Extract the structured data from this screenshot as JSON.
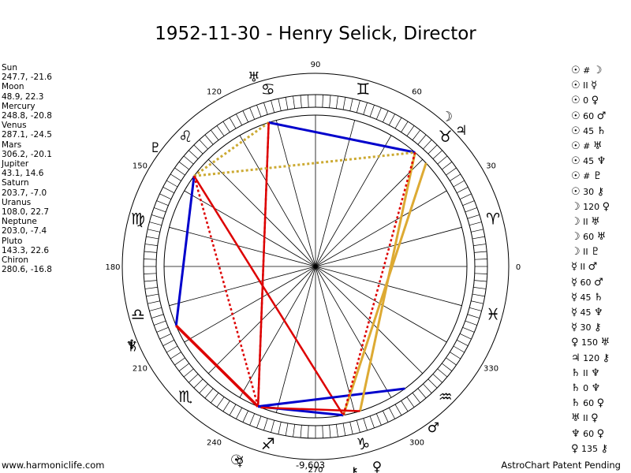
{
  "title": "1952-11-30 - Henry Selick, Director",
  "planets": [
    {
      "name": "Sun",
      "pos": "247.7, -21.6",
      "lon": 247.7,
      "glyph": "☉"
    },
    {
      "name": "Moon",
      "pos": "48.9, 22.3",
      "lon": 48.9,
      "glyph": "☽"
    },
    {
      "name": "Mercury",
      "pos": "248.8, -20.8",
      "lon": 248.8,
      "glyph": "☿"
    },
    {
      "name": "Venus",
      "pos": "287.1, -24.5",
      "lon": 287.1,
      "glyph": "♀"
    },
    {
      "name": "Mars",
      "pos": "306.2, -20.1",
      "lon": 306.2,
      "glyph": "♂"
    },
    {
      "name": "Jupiter",
      "pos": "43.1, 14.6",
      "lon": 43.1,
      "glyph": "♃"
    },
    {
      "name": "Saturn",
      "pos": "203.7, -7.0",
      "lon": 203.7,
      "glyph": "♄"
    },
    {
      "name": "Uranus",
      "pos": "108.0, 22.7",
      "lon": 108.0,
      "glyph": "♅"
    },
    {
      "name": "Neptune",
      "pos": "203.0, -7.4",
      "lon": 203.0,
      "glyph": "♆"
    },
    {
      "name": "Pluto",
      "pos": "143.3, 22.6",
      "lon": 143.3,
      "glyph": "♇"
    },
    {
      "name": "Chiron",
      "pos": "280.6, -16.8",
      "lon": 280.6,
      "glyph": "⚷"
    }
  ],
  "aspects": [
    {
      "p1": "☉",
      "asp": "#",
      "p2": "☽"
    },
    {
      "p1": "☉",
      "asp": "II",
      "p2": "☿"
    },
    {
      "p1": "☉",
      "asp": "0",
      "p2": "♀"
    },
    {
      "p1": "☉",
      "asp": "60",
      "p2": "♂"
    },
    {
      "p1": "☉",
      "asp": "45",
      "p2": "♄"
    },
    {
      "p1": "☉",
      "asp": "#",
      "p2": "♅"
    },
    {
      "p1": "☉",
      "asp": "45",
      "p2": "♆"
    },
    {
      "p1": "☉",
      "asp": "#",
      "p2": "♇"
    },
    {
      "p1": "☉",
      "asp": "30",
      "p2": "⚷"
    },
    {
      "p1": "☽",
      "asp": "120",
      "p2": "♀"
    },
    {
      "p1": "☽",
      "asp": "II",
      "p2": "♅"
    },
    {
      "p1": "☽",
      "asp": "60",
      "p2": "♅"
    },
    {
      "p1": "☽",
      "asp": "II",
      "p2": "♇"
    },
    {
      "p1": "☿",
      "asp": "II",
      "p2": "♂"
    },
    {
      "p1": "☿",
      "asp": "60",
      "p2": "♂"
    },
    {
      "p1": "☿",
      "asp": "45",
      "p2": "♄"
    },
    {
      "p1": "☿",
      "asp": "45",
      "p2": "♆"
    },
    {
      "p1": "☿",
      "asp": "30",
      "p2": "⚷"
    },
    {
      "p1": "♀",
      "asp": "150",
      "p2": "♅"
    },
    {
      "p1": "♃",
      "asp": "120",
      "p2": "⚷"
    },
    {
      "p1": "♄",
      "asp": "II",
      "p2": "♆"
    },
    {
      "p1": "♄",
      "asp": "0",
      "p2": "♆"
    },
    {
      "p1": "♄",
      "asp": "60",
      "p2": "♀"
    },
    {
      "p1": "♅",
      "asp": "II",
      "p2": "♀"
    },
    {
      "p1": "♆",
      "asp": "60",
      "p2": "♀"
    },
    {
      "p1": "♀",
      "asp": "135",
      "p2": "⚷"
    }
  ],
  "zodiac": [
    {
      "sign": "Aries",
      "glyph": "♈",
      "lon": 15
    },
    {
      "sign": "Taurus",
      "glyph": "♉",
      "lon": 45
    },
    {
      "sign": "Gemini",
      "glyph": "♊",
      "lon": 75
    },
    {
      "sign": "Cancer",
      "glyph": "♋",
      "lon": 105
    },
    {
      "sign": "Leo",
      "glyph": "♌",
      "lon": 135
    },
    {
      "sign": "Virgo",
      "glyph": "♍",
      "lon": 165
    },
    {
      "sign": "Libra",
      "glyph": "♎",
      "lon": 195
    },
    {
      "sign": "Scorpio",
      "glyph": "♏",
      "lon": 225
    },
    {
      "sign": "Sagittarius",
      "glyph": "♐",
      "lon": 255
    },
    {
      "sign": "Capricorn",
      "glyph": "♑",
      "lon": 285
    },
    {
      "sign": "Aquarius",
      "glyph": "♒",
      "lon": 315
    },
    {
      "sign": "Pisces",
      "glyph": "♓",
      "lon": 345
    }
  ],
  "degree_labels": [
    "0",
    "30",
    "60",
    "90",
    "120",
    "150",
    "180",
    "210",
    "240",
    "270",
    "300",
    "330"
  ],
  "aspect_lines": [
    {
      "from": "Uranus",
      "to": "Moon",
      "color": "#0000cc",
      "width": 3,
      "dash": false
    },
    {
      "from": "Uranus",
      "to": "Sun",
      "color": "#dd0000",
      "width": 2.5,
      "dash": false
    },
    {
      "from": "Uranus",
      "to": "Pluto",
      "color": "#ccaa33",
      "width": 3,
      "dash": true
    },
    {
      "from": "Pluto",
      "to": "Moon",
      "color": "#ccaa33",
      "width": 3,
      "dash": true
    },
    {
      "from": "Pluto",
      "to": "Neptune",
      "color": "#0000cc",
      "width": 3,
      "dash": false
    },
    {
      "from": "Pluto",
      "to": "Chiron",
      "color": "#dd0000",
      "width": 2.5,
      "dash": false
    },
    {
      "from": "Pluto",
      "to": "Sun",
      "color": "#dd0000",
      "width": 2.5,
      "dash": true
    },
    {
      "from": "Neptune",
      "to": "Sun",
      "color": "#dd0000",
      "width": 3.5,
      "dash": false
    },
    {
      "from": "Sun",
      "to": "Mars",
      "color": "#0000cc",
      "width": 3,
      "dash": false
    },
    {
      "from": "Sun",
      "to": "Chiron",
      "color": "#0000cc",
      "width": 3,
      "dash": false
    },
    {
      "from": "Moon",
      "to": "Venus",
      "color": "#ddaa33",
      "width": 3,
      "dash": false
    },
    {
      "from": "Jupiter",
      "to": "Chiron",
      "color": "#ddaa33",
      "width": 3,
      "dash": false
    },
    {
      "from": "Moon",
      "to": "Chiron",
      "color": "#dd0000",
      "width": 2.5,
      "dash": true
    },
    {
      "from": "Uranus",
      "to": "Sun",
      "color": "#dd0000",
      "width": 2.5,
      "dash": true
    },
    {
      "from": "Mercury",
      "to": "Venus",
      "color": "#dd0000",
      "width": 2.5,
      "dash": false
    }
  ],
  "score": "-9,603",
  "footer_left": "www.harmoniclife.com",
  "footer_right": "AstroChart Patent Pending"
}
